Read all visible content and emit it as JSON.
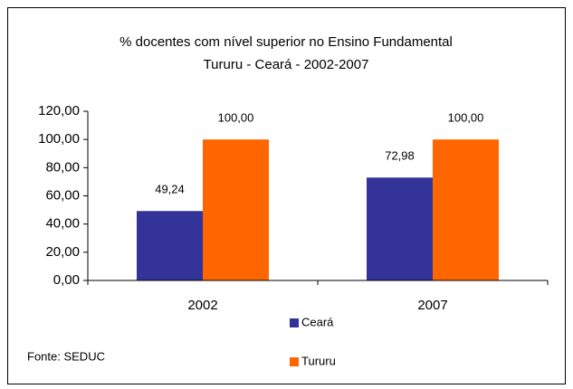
{
  "chart_data": {
    "type": "bar",
    "title": "% docentes com nível superior no  Ensino Fundamental",
    "subtitle": "Tururu -  Ceará - 2002-2007",
    "categories": [
      "2002",
      "2007"
    ],
    "series": [
      {
        "name": "Ceará",
        "color": "#333399",
        "values": [
          49.24,
          72.98
        ],
        "value_labels": [
          "49,24",
          "72,98"
        ]
      },
      {
        "name": "Tururu",
        "color": "#ff6600",
        "values": [
          100,
          100
        ],
        "value_labels": [
          "100,00",
          "100,00"
        ]
      }
    ],
    "ylim": [
      0,
      120
    ],
    "yticks": [
      {
        "value": 0,
        "label": "0,00"
      },
      {
        "value": 20,
        "label": "20,00"
      },
      {
        "value": 40,
        "label": "40,00"
      },
      {
        "value": 60,
        "label": "60,00"
      },
      {
        "value": 80,
        "label": "80,00"
      },
      {
        "value": 100,
        "label": "100,00"
      },
      {
        "value": 120,
        "label": "120,00"
      }
    ],
    "grid": false,
    "source": "Fonte: SEDUC"
  }
}
